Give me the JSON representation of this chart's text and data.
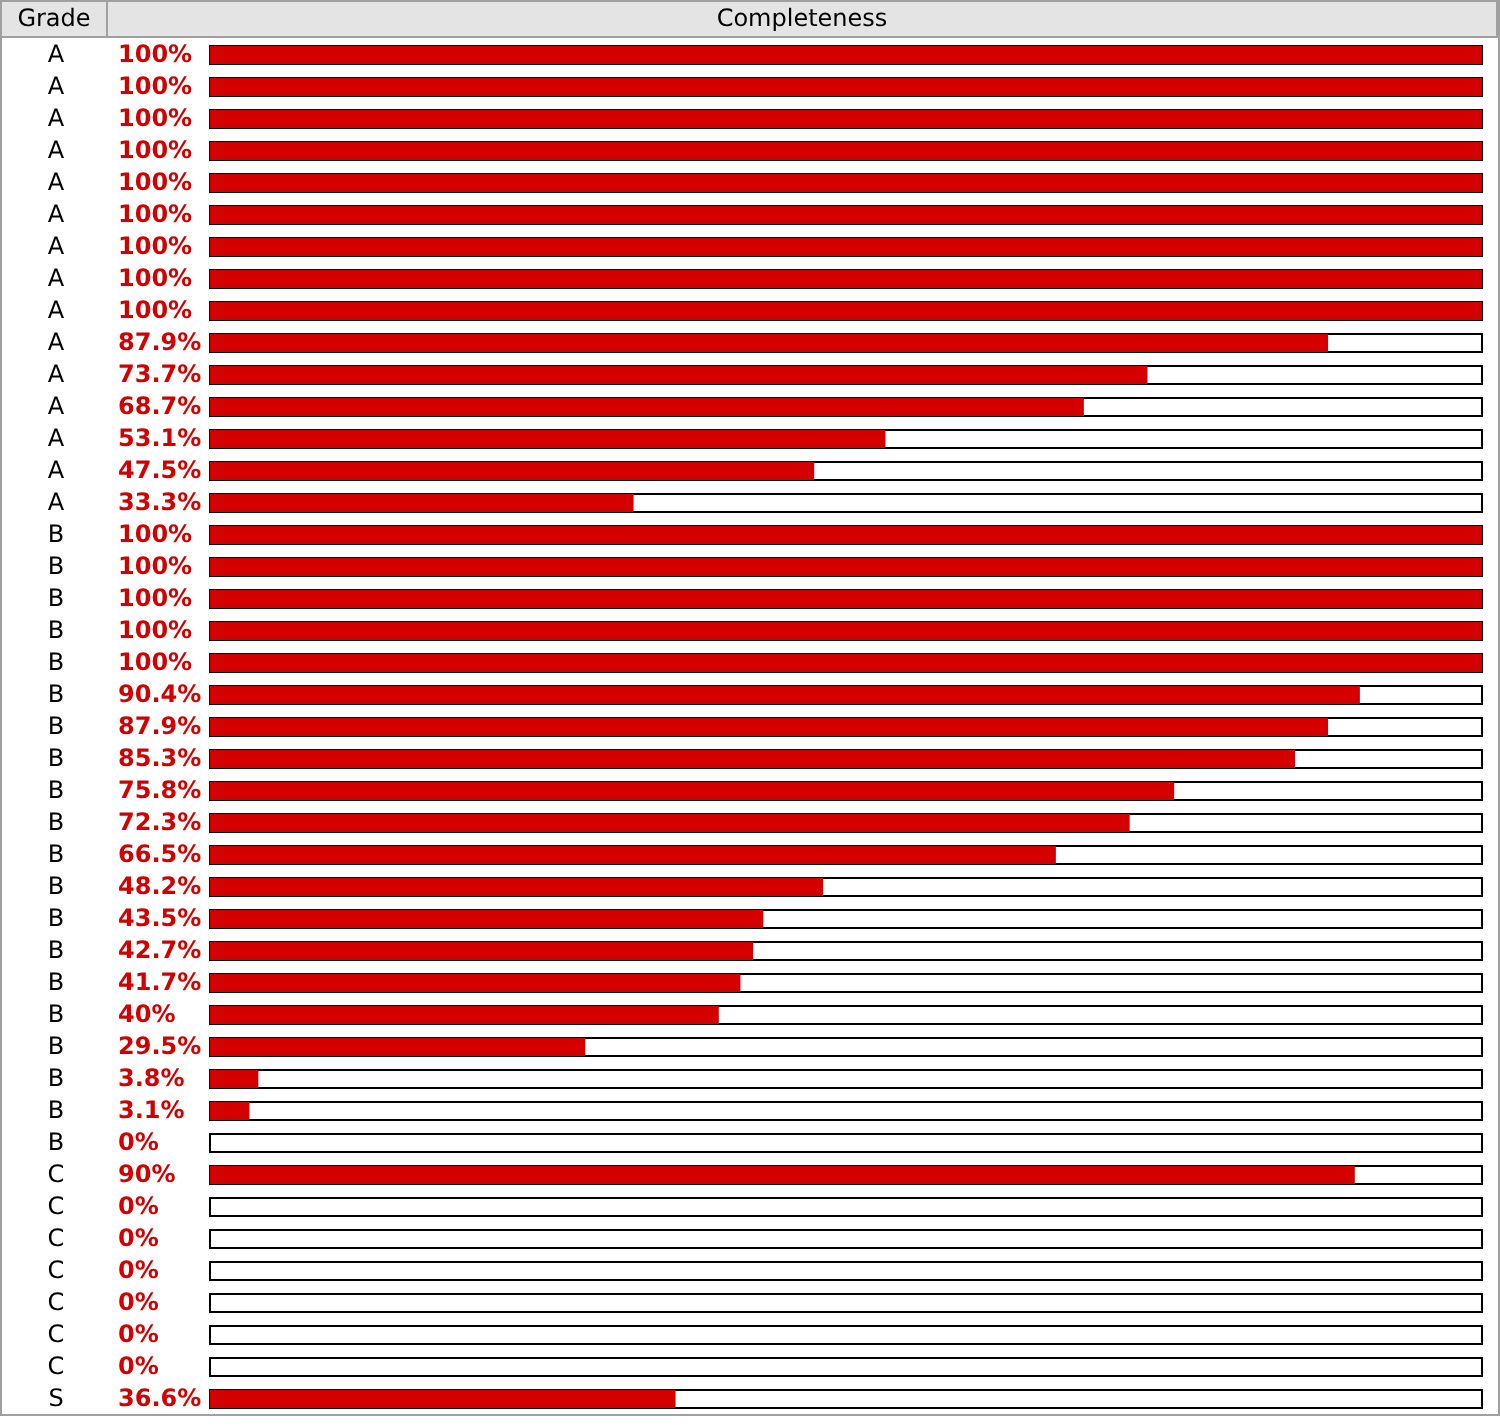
{
  "chart_data": {
    "type": "bar",
    "orientation": "horizontal",
    "xlabel": "Completeness",
    "ylabel": "Grade",
    "categories": [
      "A",
      "A",
      "A",
      "A",
      "A",
      "A",
      "A",
      "A",
      "A",
      "A",
      "A",
      "A",
      "A",
      "A",
      "A",
      "B",
      "B",
      "B",
      "B",
      "B",
      "B",
      "B",
      "B",
      "B",
      "B",
      "B",
      "B",
      "B",
      "B",
      "B",
      "B",
      "B",
      "B",
      "B",
      "B",
      "C",
      "C",
      "C",
      "C",
      "C",
      "C",
      "C",
      "S"
    ],
    "series": [
      {
        "color": "#d40000",
        "values": [
          100,
          100,
          100,
          100,
          100,
          100,
          100,
          100,
          100,
          87.9,
          73.7,
          68.7,
          53.1,
          47.5,
          33.3,
          100,
          100,
          100,
          100,
          100,
          90.4,
          87.9,
          85.3,
          75.8,
          72.3,
          66.5,
          48.2,
          43.5,
          42.7,
          41.7,
          40,
          29.5,
          3.8,
          3.1,
          0,
          90,
          0,
          0,
          0,
          0,
          0,
          0,
          36.6
        ],
        "value_labels": [
          "100%",
          "100%",
          "100%",
          "100%",
          "100%",
          "100%",
          "100%",
          "100%",
          "100%",
          "87.9%",
          "73.7%",
          "68.7%",
          "53.1%",
          "47.5%",
          "33.3%",
          "100%",
          "100%",
          "100%",
          "100%",
          "100%",
          "90.4%",
          "87.9%",
          "85.3%",
          "75.8%",
          "72.3%",
          "66.5%",
          "48.2%",
          "43.5%",
          "42.7%",
          "41.7%",
          "40%",
          "29.5%",
          "3.8%",
          "3.1%",
          "0%",
          "90%",
          "0%",
          "0%",
          "0%",
          "0%",
          "0%",
          "0%",
          "36.6%"
        ]
      }
    ],
    "xlim": [
      0,
      100
    ],
    "tick_labels": "y"
  }
}
